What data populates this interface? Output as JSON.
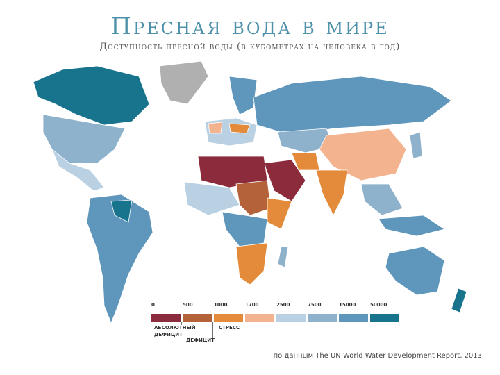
{
  "header": {
    "title": "Пресная вода в мире",
    "subtitle": "Доступность пресной воды (в кубометрах на человека в год)"
  },
  "legend": {
    "ticks": [
      0,
      500,
      1000,
      1700,
      2500,
      7500,
      15000,
      50000
    ],
    "colors": [
      "#8c2b3b",
      "#b4623a",
      "#e38b3a",
      "#f3b38e",
      "#b9d1e2",
      "#8eb1cc",
      "#5f96bc",
      "#18738d"
    ],
    "labels": [
      [
        "АБСОЛЮТНЫЙ",
        "ДЕФИЦИТ"
      ],
      [
        "ДЕФИЦИТ"
      ],
      [
        "СТРЕСС"
      ]
    ]
  },
  "source": "по данным The UN World Water Development Report, 2013"
}
